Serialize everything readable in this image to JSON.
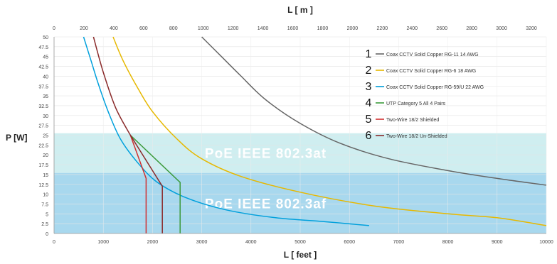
{
  "chart_data": {
    "type": "line",
    "title": "",
    "x_top": {
      "label": "L [ m ]",
      "range": [
        0,
        3300
      ],
      "ticks": [
        "0",
        "200",
        "400",
        "600",
        "800",
        "1000",
        "1200",
        "1400",
        "1600",
        "1800",
        "2000",
        "2200",
        "2400",
        "2600",
        "2800",
        "3000",
        "3200"
      ]
    },
    "x_bottom": {
      "label": "L [ feet ]",
      "range": [
        0,
        10000
      ],
      "ticks": [
        "0",
        "1000",
        "2000",
        "3000",
        "4000",
        "5000",
        "6000",
        "7000",
        "8000",
        "9000",
        "10000"
      ]
    },
    "y": {
      "label": "P [W]",
      "range": [
        0,
        50
      ],
      "ticks": [
        "0",
        "2.5",
        "5",
        "7.5",
        "10",
        "12.5",
        "15",
        "17.5",
        "20",
        "22.5",
        "25",
        "27.5",
        "30",
        "32.5",
        "35",
        "37.5",
        "40",
        "42.5",
        "45",
        "47.5",
        "50"
      ]
    },
    "bands": [
      {
        "label": "PoE IEEE 802.3at",
        "y_from": 15.4,
        "y_to": 25.5,
        "color": "#cfeef0"
      },
      {
        "label": "PoE IEEE 802.3af",
        "y_from": 0,
        "y_to": 15.4,
        "color": "#a8d8ee"
      }
    ],
    "series": [
      {
        "number": "1",
        "name": "Coax CCTV Solid Copper RG-11 14 AWG",
        "color": "#666666",
        "x_feet": [
          3000,
          3400,
          3800,
          4300,
          5000,
          5800,
          6800,
          8000,
          9000,
          10000
        ],
        "y": [
          50,
          45,
          40,
          34,
          28,
          23,
          19,
          16,
          14,
          12.3
        ]
      },
      {
        "number": "2",
        "name": "Coax CCTV Solid Copper RG-6 18 AWG",
        "color": "#e6b800",
        "x_feet": [
          1200,
          1400,
          1700,
          2000,
          2500,
          3000,
          3800,
          5000,
          6500,
          8000,
          9000,
          10000
        ],
        "y": [
          50,
          44,
          37,
          31,
          24,
          19,
          14.5,
          10.5,
          7,
          5,
          4,
          2
        ]
      },
      {
        "number": "3",
        "name": "Coax CCTV Solid Copper RG-59/U 22 AWG",
        "color": "#00a0dc",
        "x_feet": [
          600,
          750,
          900,
          1100,
          1350,
          1700,
          2100,
          2700,
          3500,
          4500,
          5500,
          6400
        ],
        "y": [
          50,
          44,
          38,
          31,
          24,
          18,
          13,
          9,
          6,
          4,
          3,
          2
        ]
      },
      {
        "number": "4",
        "name": "UTP Category 5 All 4 Pairs",
        "color": "#3a9a3a",
        "x_feet": [
          1550,
          2560,
          2560
        ],
        "y": [
          25,
          13,
          0
        ]
      },
      {
        "number": "5",
        "name": "Two-Wire 18/2 Shielded",
        "color": "#d03030",
        "x_feet": [
          1550,
          1870,
          1870
        ],
        "y": [
          25,
          14,
          0
        ]
      },
      {
        "number": "6",
        "name": "Two-Wire 18/2 Un-Shielded",
        "color": "#8a2a2a",
        "x_feet": [
          800,
          1000,
          1250,
          1550,
          2200,
          2200
        ],
        "y": [
          50,
          41,
          32,
          25,
          12,
          0
        ]
      }
    ]
  }
}
